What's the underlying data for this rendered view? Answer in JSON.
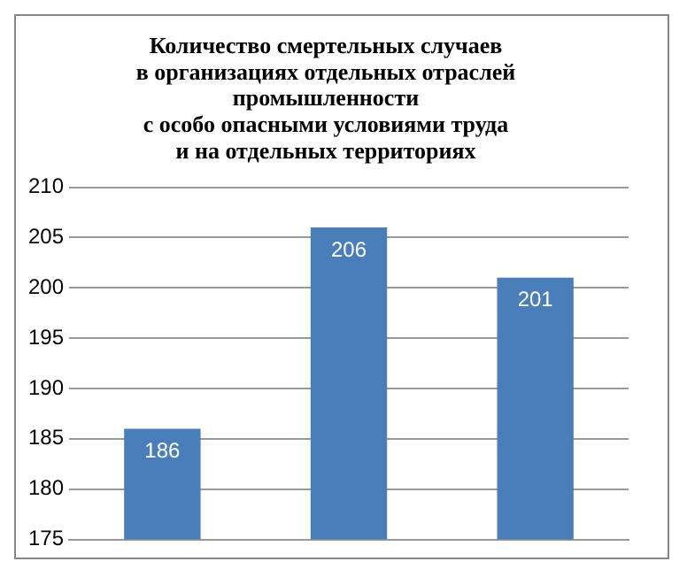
{
  "chart_data": {
    "type": "bar",
    "title": "Количество смертельных случаев\nв организациях отдельных отраслей\nпромышленности\nс особо опасными условиями труда\nи на отдельных территориях",
    "categories": [
      null,
      null,
      null
    ],
    "values": [
      186,
      206,
      201
    ],
    "color": "#4a7ebb",
    "ylim": [
      175,
      210
    ],
    "yticks": [
      175,
      180,
      185,
      190,
      195,
      200,
      205,
      210
    ],
    "grid": "y",
    "data_labels": true
  }
}
